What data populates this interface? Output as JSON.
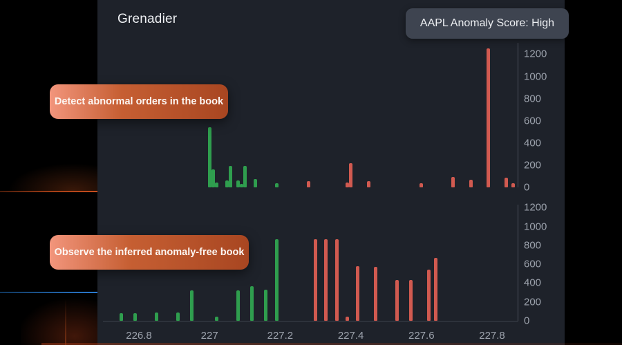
{
  "header": {
    "title": "Grenadier",
    "badge": "AAPL Anomaly Score: High"
  },
  "callouts": [
    {
      "label": "Detect abnormal orders in the book"
    },
    {
      "label": "Observe the inferred anomaly-free book"
    }
  ],
  "colors": {
    "page_bg": "#000000",
    "panel_bg": "#1e222a",
    "bid_green": "#2f9e4e",
    "ask_red": "#d15a50",
    "axis_label": "#9da3ad",
    "axis_line": "#4c515b",
    "badge_bg": "#3e4450",
    "callout_gradient_start": "#f2957c",
    "callout_gradient_end": "#a84621",
    "accent_orange_line": "#c84e1e",
    "accent_blue_line": "#2b7cd3"
  },
  "x_axis": {
    "ticks": [
      {
        "value": 226.8,
        "label": "226.8"
      },
      {
        "value": 227.0,
        "label": "227"
      },
      {
        "value": 227.2,
        "label": "227.2"
      },
      {
        "value": 227.4,
        "label": "227.4"
      },
      {
        "value": 227.6,
        "label": "227.6"
      },
      {
        "value": 227.8,
        "label": "227.8"
      }
    ]
  },
  "chart_data": [
    {
      "type": "bar",
      "name": "order-book-with-anomalies",
      "title": "",
      "xlabel": "",
      "ylabel": "",
      "xlim": [
        226.7,
        227.88
      ],
      "ylim": [
        0,
        1300
      ],
      "y_ticks": [
        "0",
        "200",
        "400",
        "600",
        "800",
        "1000",
        "1200"
      ],
      "bars": [
        {
          "side": "bid",
          "price": 227.0,
          "size": 540
        },
        {
          "side": "bid",
          "price": 227.01,
          "size": 165
        },
        {
          "side": "bid",
          "price": 227.02,
          "size": 45
        },
        {
          "side": "bid",
          "price": 227.05,
          "size": 65
        },
        {
          "side": "bid",
          "price": 227.06,
          "size": 195
        },
        {
          "side": "bid",
          "price": 227.08,
          "size": 65
        },
        {
          "side": "bid",
          "price": 227.09,
          "size": 30
        },
        {
          "side": "bid",
          "price": 227.1,
          "size": 195
        },
        {
          "side": "bid",
          "price": 227.13,
          "size": 75
        },
        {
          "side": "bid",
          "price": 227.19,
          "size": 40
        },
        {
          "side": "ask",
          "price": 227.28,
          "size": 55
        },
        {
          "side": "ask",
          "price": 227.39,
          "size": 45
        },
        {
          "side": "ask",
          "price": 227.4,
          "size": 220
        },
        {
          "side": "ask",
          "price": 227.45,
          "size": 55
        },
        {
          "side": "ask",
          "price": 227.6,
          "size": 35
        },
        {
          "side": "ask",
          "price": 227.69,
          "size": 95
        },
        {
          "side": "ask",
          "price": 227.74,
          "size": 70
        },
        {
          "side": "ask",
          "price": 227.79,
          "size": 1250
        },
        {
          "side": "ask",
          "price": 227.84,
          "size": 90
        },
        {
          "side": "ask",
          "price": 227.86,
          "size": 35
        }
      ]
    },
    {
      "type": "bar",
      "name": "anomaly-free-order-book",
      "title": "",
      "xlabel": "",
      "ylabel": "",
      "xlim": [
        226.7,
        227.88
      ],
      "ylim": [
        0,
        1300
      ],
      "y_ticks": [
        "0",
        "200",
        "400",
        "600",
        "800",
        "1000",
        "1200"
      ],
      "bars": [
        {
          "side": "bid",
          "price": 226.75,
          "size": 80
        },
        {
          "side": "bid",
          "price": 226.79,
          "size": 80
        },
        {
          "side": "bid",
          "price": 226.85,
          "size": 90
        },
        {
          "side": "bid",
          "price": 226.91,
          "size": 90
        },
        {
          "side": "bid",
          "price": 226.95,
          "size": 320
        },
        {
          "side": "bid",
          "price": 227.02,
          "size": 45
        },
        {
          "side": "bid",
          "price": 227.08,
          "size": 320
        },
        {
          "side": "bid",
          "price": 227.12,
          "size": 365
        },
        {
          "side": "bid",
          "price": 227.16,
          "size": 330
        },
        {
          "side": "bid",
          "price": 227.19,
          "size": 865
        },
        {
          "side": "ask",
          "price": 227.3,
          "size": 865
        },
        {
          "side": "ask",
          "price": 227.33,
          "size": 865
        },
        {
          "side": "ask",
          "price": 227.36,
          "size": 865
        },
        {
          "side": "ask",
          "price": 227.39,
          "size": 45
        },
        {
          "side": "ask",
          "price": 227.42,
          "size": 580
        },
        {
          "side": "ask",
          "price": 227.47,
          "size": 570
        },
        {
          "side": "ask",
          "price": 227.53,
          "size": 430
        },
        {
          "side": "ask",
          "price": 227.57,
          "size": 430
        },
        {
          "side": "ask",
          "price": 227.62,
          "size": 545
        },
        {
          "side": "ask",
          "price": 227.64,
          "size": 670
        }
      ]
    }
  ]
}
